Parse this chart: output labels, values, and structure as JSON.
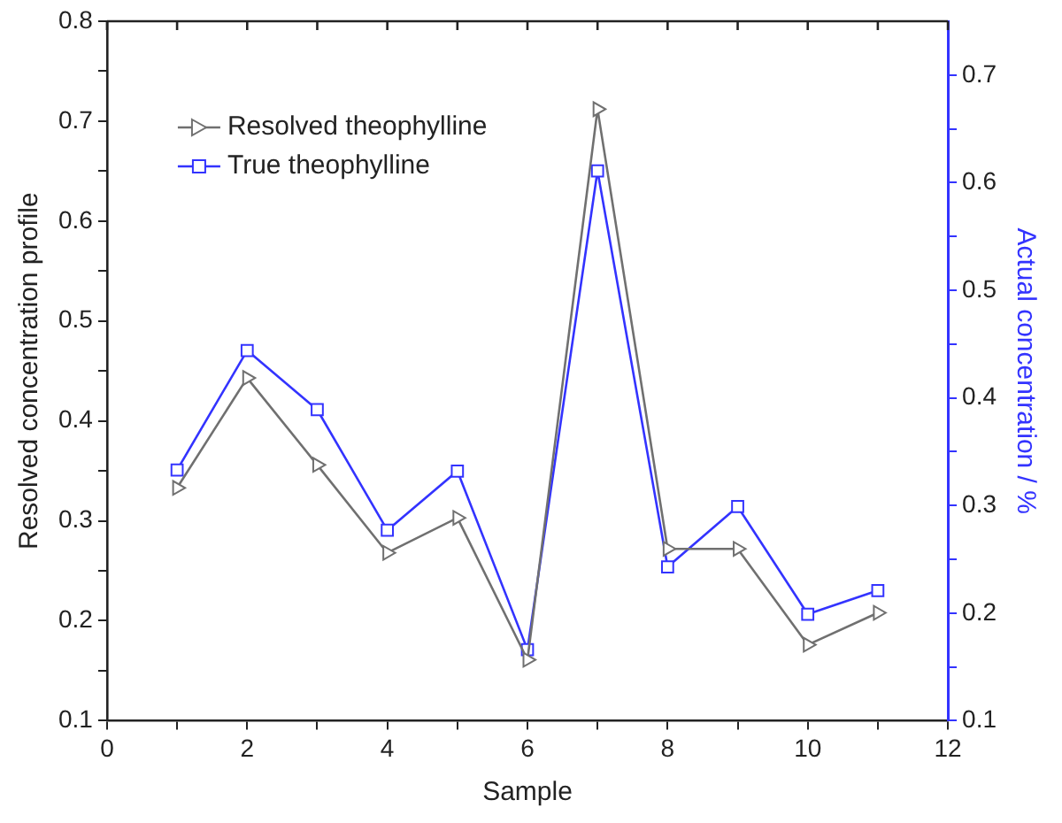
{
  "chart_data": {
    "type": "line",
    "xlabel": "Sample",
    "ylabel": "Resolved concentration profile",
    "y2label": "Actual concentration / %",
    "x": [
      1,
      2,
      3,
      4,
      5,
      6,
      7,
      8,
      9,
      10,
      11
    ],
    "series": [
      {
        "name": "Resolved theophylline",
        "color": "#707070",
        "marker": "triangle",
        "values": [
          0.333,
          0.443,
          0.356,
          0.268,
          0.303,
          0.161,
          0.712,
          0.272,
          0.272,
          0.176,
          0.208
        ]
      },
      {
        "name": "True theophylline",
        "color": "#3333ff",
        "marker": "square",
        "axis": "y2",
        "values": [
          0.333,
          0.444,
          0.389,
          0.277,
          0.332,
          0.166,
          0.611,
          0.243,
          0.299,
          0.199,
          0.221
        ]
      }
    ],
    "xlim": [
      0,
      12
    ],
    "xticks": [
      0,
      {
        "value": 1,
        "label": null
      },
      2,
      {
        "value": 3,
        "label": null
      },
      4,
      {
        "value": 5,
        "label": null
      },
      6,
      {
        "value": 7,
        "label": null
      },
      8,
      {
        "value": 9,
        "label": null
      },
      10,
      {
        "value": 11,
        "label": null
      },
      12
    ],
    "ylim": [
      0.1,
      0.8
    ],
    "yticks": [
      0.1,
      {
        "value": 0.15,
        "label": null
      },
      0.2,
      {
        "value": 0.25,
        "label": null
      },
      0.3,
      {
        "value": 0.35,
        "label": null
      },
      0.4,
      {
        "value": 0.45,
        "label": null
      },
      0.5,
      {
        "value": 0.55,
        "label": null
      },
      0.6,
      {
        "value": 0.65,
        "label": null
      },
      0.7,
      {
        "value": 0.75,
        "label": null
      },
      0.8
    ],
    "y2lim": [
      0.1,
      0.75
    ],
    "y2ticks": [
      0.1,
      {
        "value": 0.15,
        "label": null
      },
      0.2,
      {
        "value": 0.25,
        "label": null
      },
      0.3,
      {
        "value": 0.35,
        "label": null
      },
      0.4,
      {
        "value": 0.45,
        "label": null
      },
      0.5,
      {
        "value": 0.55,
        "label": null
      },
      0.6,
      {
        "value": 0.65,
        "label": null
      },
      0.7
    ],
    "grid": false,
    "legend": "top left",
    "line_style": "solid"
  }
}
